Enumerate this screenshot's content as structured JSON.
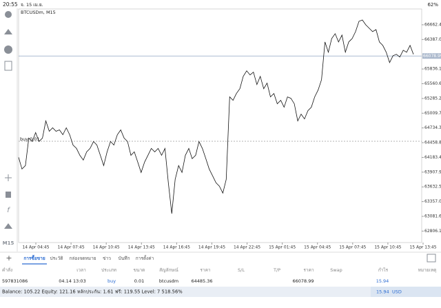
{
  "status_bar": {
    "time": "20:55",
    "date": "จ. 15 เม.ย.",
    "battery": "62%"
  },
  "toolbar": {
    "timeframe": "M15"
  },
  "chart": {
    "type": "line",
    "title": "BTCUSDm, M15",
    "color": "#111111",
    "position_label": "buy 0.01",
    "current_price": 66078.99,
    "categories": [
      "14 Apr 04:45",
      "14 Apr 07:45",
      "14 Apr 10:45",
      "14 Apr 13:45",
      "14 Apr 16:45",
      "14 Apr 19:45",
      "14 Apr 22:45",
      "15 Apr 01:45",
      "15 Apr 04:45",
      "15 Apr 07:45",
      "15 Apr 10:45",
      "15 Apr 13:45"
    ],
    "values": [
      64184,
      63966,
      64030,
      64544,
      64480,
      64647,
      64480,
      64544,
      64865,
      64672,
      64736,
      64672,
      64698,
      64608,
      64736,
      64608,
      64415,
      64351,
      64223,
      64133,
      64287,
      64351,
      64480,
      64415,
      64223,
      64030,
      64287,
      64480,
      64415,
      64608,
      64698,
      64544,
      64480,
      64223,
      64287,
      64095,
      63902,
      64095,
      64223,
      64351,
      64287,
      64351,
      64223,
      64351,
      63709,
      63131,
      63773,
      64030,
      63902,
      64223,
      64351,
      64159,
      64223,
      64480,
      64351,
      64159,
      63966,
      63838,
      63709,
      63645,
      63517,
      63773,
      65314,
      65250,
      65378,
      65468,
      65699,
      65802,
      65725,
      65777,
      65545,
      65699,
      65468,
      65571,
      65314,
      65378,
      65186,
      65250,
      65122,
      65314,
      65288,
      65186,
      64865,
      64993,
      64903,
      65057,
      65122,
      65314,
      65443,
      65635,
      66341,
      66149,
      66406,
      66495,
      66341,
      66470,
      66149,
      66341,
      66406,
      66534,
      66727,
      66752,
      66662,
      66598,
      66534,
      66572,
      66341,
      66277,
      66149,
      65956,
      66085,
      66110,
      66059,
      66187,
      66149,
      66277,
      66110
    ],
    "ylim": [
      62592,
      66958
    ],
    "yticks": [
      66662.45,
      {
        "value": 66387,
        "label": "66387.00"
      },
      65836.16,
      65560.65,
      {
        "value": 65285.2,
        "label": "65285.20"
      },
      65009.75,
      {
        "value": 64734.3,
        "label": "64734.30"
      },
      64458.85,
      {
        "value": 64183.4,
        "label": "64183.40"
      },
      63907.95,
      {
        "value": 63632.5,
        "label": "63632.50"
      },
      63357.05,
      {
        "value": 63081.6,
        "label": "63081.60"
      },
      62806.15
    ]
  },
  "tabs": [
    "การซื้อขาย",
    "ประวัติ",
    "กล่องจดหมาย",
    "ข่าว",
    "บันทึก",
    "การตั้งค่า"
  ],
  "table": {
    "headers": [
      "คำสั่ง",
      "เวลา",
      "ประเภท",
      "ขนาด",
      "สัญลักษณ์",
      "ราคา",
      "S/L",
      "T/P",
      "ราคา",
      "Swap",
      "กำไร",
      "หมายเหตุ"
    ],
    "rows": [
      {
        "order": "597831086",
        "time": "04.14 13:03",
        "type": "buy",
        "volume": "0.01",
        "symbol": "btcusdm",
        "price": "64485.36",
        "profit": "15.94"
      }
    ]
  },
  "summary": {
    "text": "Balance: 105.22 Equity: 121.16 หลักประกัน: 1.61 ฟรี: 119.55 Level: 7 518.56%",
    "profit": "15.94",
    "currency": "USD"
  }
}
